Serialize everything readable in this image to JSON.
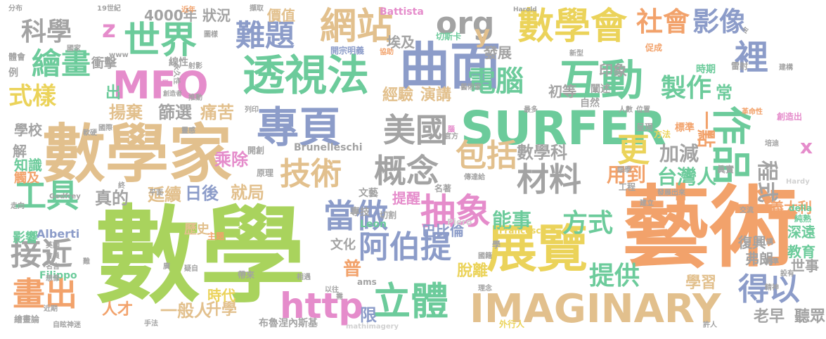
{
  "palette": {
    "green": "#a9d35d",
    "sand": "#e2c08d",
    "blue": "#8c9cc9",
    "teal": "#6ccb9b",
    "pink": "#e58ccb",
    "gray": "#a3a3a3",
    "yellow": "#ebd35a",
    "orange": "#f2a26b",
    "lightgray": "#d1d1d1"
  },
  "words": [
    {
      "id": "w0",
      "text": "數學",
      "color": "green"
    },
    {
      "id": "w1",
      "text": "藝術",
      "color": "orange"
    },
    {
      "id": "w2",
      "text": "數學家",
      "color": "sand"
    },
    {
      "id": "w3",
      "text": "SURFER",
      "color": "teal"
    },
    {
      "id": "w4",
      "text": "IMAGINARY",
      "color": "sand"
    },
    {
      "id": "w5",
      "text": "展覽",
      "color": "yellow"
    },
    {
      "id": "w6",
      "text": "曲面",
      "color": "blue"
    },
    {
      "id": "w7",
      "text": "互動",
      "color": "teal"
    },
    {
      "id": "w8",
      "text": "數學會",
      "color": "yellow"
    },
    {
      "id": "w9",
      "text": "作品",
      "color": "teal"
    },
    {
      "id": "w10",
      "text": "透視法",
      "color": "teal"
    },
    {
      "id": "w11",
      "text": "專頁",
      "color": "blue"
    },
    {
      "id": "w12",
      "text": "MFO",
      "color": "pink"
    },
    {
      "id": "w13",
      "text": "世界",
      "color": "teal"
    },
    {
      "id": "w14",
      "text": "網站",
      "color": "sand"
    },
    {
      "id": "w15",
      "text": "難題",
      "color": "blue"
    },
    {
      "id": "w16",
      "text": "美國",
      "color": "gray"
    },
    {
      "id": "w17",
      "text": "概念",
      "color": "gray"
    },
    {
      "id": "w18",
      "text": "材料",
      "color": "gray"
    },
    {
      "id": "w19",
      "text": "立體",
      "color": "teal"
    },
    {
      "id": "w20",
      "text": "http",
      "color": "pink"
    },
    {
      "id": "w21",
      "text": "阿伯提",
      "color": "blue"
    },
    {
      "id": "w22",
      "text": "當做",
      "color": "blue"
    },
    {
      "id": "w23",
      "text": "抽象",
      "color": "pink"
    },
    {
      "id": "w24",
      "text": "技術",
      "color": "sand"
    },
    {
      "id": "w25",
      "text": "包括",
      "color": "sand"
    },
    {
      "id": "w26",
      "text": "工具",
      "color": "teal"
    },
    {
      "id": "w27",
      "text": "接近",
      "color": "gray"
    },
    {
      "id": "w28",
      "text": "畫出",
      "color": "orange"
    },
    {
      "id": "w29",
      "text": "繪畫",
      "color": "teal"
    },
    {
      "id": "w30",
      "text": "科學",
      "color": "gray"
    },
    {
      "id": "w31",
      "text": "電腦",
      "color": "teal"
    },
    {
      "id": "w32",
      "text": "社會",
      "color": "orange"
    },
    {
      "id": "w33",
      "text": "影像",
      "color": "blue"
    },
    {
      "id": "w34",
      "text": "裡",
      "color": "blue"
    },
    {
      "id": "w35",
      "text": "更",
      "color": "yellow"
    },
    {
      "id": "w36",
      "text": "得以",
      "color": "blue"
    },
    {
      "id": "w37",
      "text": "提供",
      "color": "teal"
    },
    {
      "id": "w38",
      "text": "方式",
      "color": "teal"
    },
    {
      "id": "w39",
      "text": "能事",
      "color": "teal"
    },
    {
      "id": "w40",
      "text": "製作",
      "color": "teal"
    },
    {
      "id": "w41",
      "text": "org",
      "color": "gray"
    },
    {
      "id": "w42",
      "text": "z",
      "color": "pink"
    },
    {
      "id": "w43",
      "text": "y",
      "color": "sand"
    },
    {
      "id": "w44",
      "text": "x",
      "color": "pink"
    },
    {
      "id": "w45",
      "text": "式樣",
      "color": "yellow"
    },
    {
      "id": "w46",
      "text": "程式",
      "color": "gray"
    },
    {
      "id": "w47",
      "text": "台灣人",
      "color": "teal"
    },
    {
      "id": "w48",
      "text": "加減",
      "color": "gray"
    },
    {
      "id": "w49",
      "text": "用到",
      "color": "orange"
    },
    {
      "id": "w50",
      "text": "數學科",
      "color": "gray"
    },
    {
      "id": "w51",
      "text": "一點",
      "color": "orange"
    },
    {
      "id": "w52",
      "text": "常",
      "color": "teal"
    },
    {
      "id": "w53",
      "text": "經驗",
      "color": "sand"
    },
    {
      "id": "w54",
      "text": "演講",
      "color": "sand"
    },
    {
      "id": "w55",
      "text": "初等",
      "color": "gray"
    },
    {
      "id": "w56",
      "text": "印象",
      "color": "gray"
    },
    {
      "id": "w57",
      "text": "揚棄",
      "color": "sand"
    },
    {
      "id": "w58",
      "text": "篩選",
      "color": "gray"
    },
    {
      "id": "w59",
      "text": "痛苦",
      "color": "sand"
    },
    {
      "id": "w60",
      "text": "乘除",
      "color": "pink"
    },
    {
      "id": "w61",
      "text": "延續",
      "color": "sand"
    },
    {
      "id": "w62",
      "text": "日後",
      "color": "blue"
    },
    {
      "id": "w63",
      "text": "就局",
      "color": "sand"
    },
    {
      "id": "w64",
      "text": "真的",
      "color": "gray"
    },
    {
      "id": "w65",
      "text": "一般人",
      "color": "sand"
    },
    {
      "id": "w66",
      "text": "升學",
      "color": "sand"
    },
    {
      "id": "w67",
      "text": "人才",
      "color": "orange"
    },
    {
      "id": "w68",
      "text": "時代",
      "color": "yellow"
    },
    {
      "id": "w69",
      "text": "普",
      "color": "orange"
    },
    {
      "id": "w70",
      "text": "限",
      "color": "blue"
    },
    {
      "id": "w71",
      "text": "脫離",
      "color": "yellow"
    },
    {
      "id": "w72",
      "text": "學習",
      "color": "sand"
    },
    {
      "id": "w73",
      "text": "老早",
      "color": "gray"
    },
    {
      "id": "w74",
      "text": "聽眾",
      "color": "gray"
    },
    {
      "id": "w75",
      "text": "深遠",
      "color": "teal"
    },
    {
      "id": "w76",
      "text": "教育",
      "color": "teal"
    },
    {
      "id": "w77",
      "text": "義大利",
      "color": "orange"
    },
    {
      "id": "w78",
      "text": "世事",
      "color": "gray"
    },
    {
      "id": "w79",
      "text": "提醒",
      "color": "pink"
    },
    {
      "id": "w80",
      "text": "巴比倫",
      "color": "blue"
    },
    {
      "id": "w81",
      "text": "復興",
      "color": "gray"
    },
    {
      "id": "w82",
      "text": "弗朗",
      "color": "gray"
    },
    {
      "id": "w83",
      "text": "埃及",
      "color": "gray"
    },
    {
      "id": "w84",
      "text": "發展",
      "color": "gray"
    },
    {
      "id": "w85",
      "text": "出",
      "color": "teal"
    },
    {
      "id": "w86",
      "text": "4000年",
      "color": "gray"
    },
    {
      "id": "w87",
      "text": "狀況",
      "color": "gray"
    },
    {
      "id": "w88",
      "text": "價值",
      "color": "sand"
    },
    {
      "id": "w89",
      "text": "衝擊",
      "color": "gray"
    },
    {
      "id": "w90",
      "text": "學校",
      "color": "gray"
    },
    {
      "id": "w91",
      "text": "解",
      "color": "gray"
    },
    {
      "id": "w92",
      "text": "知識",
      "color": "teal"
    },
    {
      "id": "w93",
      "text": "觸及",
      "color": "orange"
    },
    {
      "id": "w94",
      "text": "影響",
      "color": "teal"
    },
    {
      "id": "w95",
      "text": "歷史",
      "color": "sand"
    },
    {
      "id": "w96",
      "text": "文化",
      "color": "gray"
    },
    {
      "id": "w97",
      "text": "Brunelleschi",
      "color": "gray"
    },
    {
      "id": "w98",
      "text": "Alberti",
      "color": "blue"
    },
    {
      "id": "w99",
      "text": "Filippo",
      "color": "teal"
    },
    {
      "id": "w100",
      "text": "Leon",
      "color": "teal"
    },
    {
      "id": "w101",
      "text": "Battista",
      "color": "pink"
    },
    {
      "id": "w102",
      "text": "Piero",
      "color": "lightgray"
    },
    {
      "id": "w103",
      "text": "della",
      "color": "teal"
    },
    {
      "id": "w104",
      "text": "Francesca",
      "color": "yellow"
    },
    {
      "id": "w105",
      "text": "Godfrey",
      "color": "gray"
    },
    {
      "id": "w106",
      "text": "Hardy",
      "color": "lightgray"
    },
    {
      "id": "w107",
      "text": "Harold",
      "color": "gray"
    },
    {
      "id": "w108",
      "text": "ams",
      "color": "gray"
    },
    {
      "id": "w109",
      "text": "mathimagery",
      "color": "lightgray"
    },
    {
      "id": "w110",
      "text": "www",
      "color": "gray"
    },
    {
      "id": "w111",
      "text": "分布",
      "color": "gray"
    },
    {
      "id": "w112",
      "text": "19世紀",
      "color": "gray"
    },
    {
      "id": "w113",
      "text": "近年",
      "color": "orange"
    },
    {
      "id": "w114",
      "text": "擷取",
      "color": "gray"
    },
    {
      "id": "w115",
      "text": "切斯卡",
      "color": "teal"
    },
    {
      "id": "w116",
      "text": "開宗明義",
      "color": "blue"
    },
    {
      "id": "w117",
      "text": "協助",
      "color": "orange"
    },
    {
      "id": "w118",
      "text": "新型",
      "color": "gray"
    },
    {
      "id": "w119",
      "text": "促成",
      "color": "orange"
    },
    {
      "id": "w120",
      "text": "時期",
      "color": "teal"
    },
    {
      "id": "w121",
      "text": "雷射",
      "color": "gray"
    },
    {
      "id": "w122",
      "text": "建構",
      "color": "gray"
    },
    {
      "id": "w123",
      "text": "闡述",
      "color": "gray"
    },
    {
      "id": "w124",
      "text": "自然",
      "color": "gray"
    },
    {
      "id": "w125",
      "text": "線性",
      "color": "gray"
    },
    {
      "id": "w126",
      "text": "永久性",
      "color": "gray"
    },
    {
      "id": "w127",
      "text": "專業",
      "color": "pink"
    },
    {
      "id": "w128",
      "text": "推動",
      "color": "gray"
    },
    {
      "id": "w129",
      "text": "藝術家",
      "color": "gray"
    },
    {
      "id": "w130",
      "text": "最多",
      "color": "gray"
    },
    {
      "id": "w131",
      "text": "人數",
      "color": "gray"
    },
    {
      "id": "w132",
      "text": "位置",
      "color": "gray"
    },
    {
      "id": "w133",
      "text": "革命性",
      "color": "orange"
    },
    {
      "id": "w134",
      "text": "創造出",
      "color": "pink"
    },
    {
      "id": "w135",
      "text": "標準",
      "color": "orange"
    },
    {
      "id": "w136",
      "text": "方法",
      "color": "yellow"
    },
    {
      "id": "w137",
      "text": "呈現",
      "color": "gray"
    },
    {
      "id": "w138",
      "text": "順學",
      "color": "gray"
    },
    {
      "id": "w139",
      "text": "眞實",
      "color": "gray"
    },
    {
      "id": "w140",
      "text": "工程",
      "color": "gray"
    },
    {
      "id": "w141",
      "text": "發展出來",
      "color": "gray"
    },
    {
      "id": "w142",
      "text": "建立",
      "color": "gray"
    },
    {
      "id": "w143",
      "text": "交流",
      "color": "gray"
    },
    {
      "id": "w144",
      "text": "純熟",
      "color": "teal"
    },
    {
      "id": "w145",
      "text": "精準",
      "color": "gray"
    },
    {
      "id": "w146",
      "text": "設有",
      "color": "gray"
    },
    {
      "id": "w147",
      "text": "精神",
      "color": "gray"
    },
    {
      "id": "w148",
      "text": "許人",
      "color": "gray"
    },
    {
      "id": "w149",
      "text": "外行人",
      "color": "yellow"
    },
    {
      "id": "w150",
      "text": "布魯涅內斯基",
      "color": "gray"
    },
    {
      "id": "w151",
      "text": "手法",
      "color": "gray"
    },
    {
      "id": "w152",
      "text": "帶來",
      "color": "gray"
    },
    {
      "id": "w153",
      "text": "以往",
      "color": "gray"
    },
    {
      "id": "w154",
      "text": "相遇",
      "color": "gray"
    },
    {
      "id": "w155",
      "text": "自眩神迷",
      "color": "gray"
    },
    {
      "id": "w156",
      "text": "繪畫論",
      "color": "gray"
    },
    {
      "id": "w157",
      "text": "近期",
      "color": "gray"
    },
    {
      "id": "w158",
      "text": "名言",
      "color": "gray"
    },
    {
      "id": "w159",
      "text": "想像",
      "color": "gray"
    },
    {
      "id": "w160",
      "text": "會員",
      "color": "gray"
    },
    {
      "id": "w161",
      "text": "英國",
      "color": "gray"
    },
    {
      "id": "w162",
      "text": "主題",
      "color": "orange"
    },
    {
      "id": "w163",
      "text": "原理",
      "color": "gray"
    },
    {
      "id": "w164",
      "text": "開創",
      "color": "gray"
    },
    {
      "id": "w165",
      "text": "名著",
      "color": "gray"
    },
    {
      "id": "w166",
      "text": "文藝",
      "color": "gray"
    },
    {
      "id": "w167",
      "text": "專技",
      "color": "gray"
    },
    {
      "id": "w168",
      "text": "切割",
      "color": "gray"
    },
    {
      "id": "w169",
      "text": "平面",
      "color": "gray"
    },
    {
      "id": "w170",
      "text": "傳達給",
      "color": "gray"
    },
    {
      "id": "w171",
      "text": "官方",
      "color": "gray"
    },
    {
      "id": "w172",
      "text": "軟硬",
      "color": "gray"
    },
    {
      "id": "w173",
      "text": "靈感",
      "color": "gray"
    },
    {
      "id": "w174",
      "text": "射影",
      "color": "gray"
    },
    {
      "id": "w175",
      "text": "國際",
      "color": "gray"
    },
    {
      "id": "w176",
      "text": "創造者",
      "color": "gray"
    },
    {
      "id": "w177",
      "text": "圖樣",
      "color": "gray"
    },
    {
      "id": "w178",
      "text": "國家",
      "color": "gray"
    },
    {
      "id": "w179",
      "text": "體會",
      "color": "gray"
    },
    {
      "id": "w180",
      "text": "例",
      "color": "gray"
    },
    {
      "id": "w181",
      "text": "走向",
      "color": "gray"
    },
    {
      "id": "w182",
      "text": "列印",
      "color": "gray"
    },
    {
      "id": "w183",
      "text": "學",
      "color": "gray"
    },
    {
      "id": "w184",
      "text": "講",
      "color": "gray"
    },
    {
      "id": "w185",
      "text": "終",
      "color": "gray"
    },
    {
      "id": "w186",
      "text": "令",
      "color": "gray"
    },
    {
      "id": "w187",
      "text": "腦",
      "color": "pink"
    },
    {
      "id": "w188",
      "text": "國籍",
      "color": "gray"
    },
    {
      "id": "w189",
      "text": "理念",
      "color": "gray"
    },
    {
      "id": "w190",
      "text": "疑自",
      "color": "gray"
    },
    {
      "id": "w191",
      "text": "廣",
      "color": "gray"
    },
    {
      "id": "w192",
      "text": "需",
      "color": "gray"
    },
    {
      "id": "w193",
      "text": "難",
      "color": "gray"
    },
    {
      "id": "w194",
      "text": "培迪",
      "color": "gray"
    }
  ]
}
